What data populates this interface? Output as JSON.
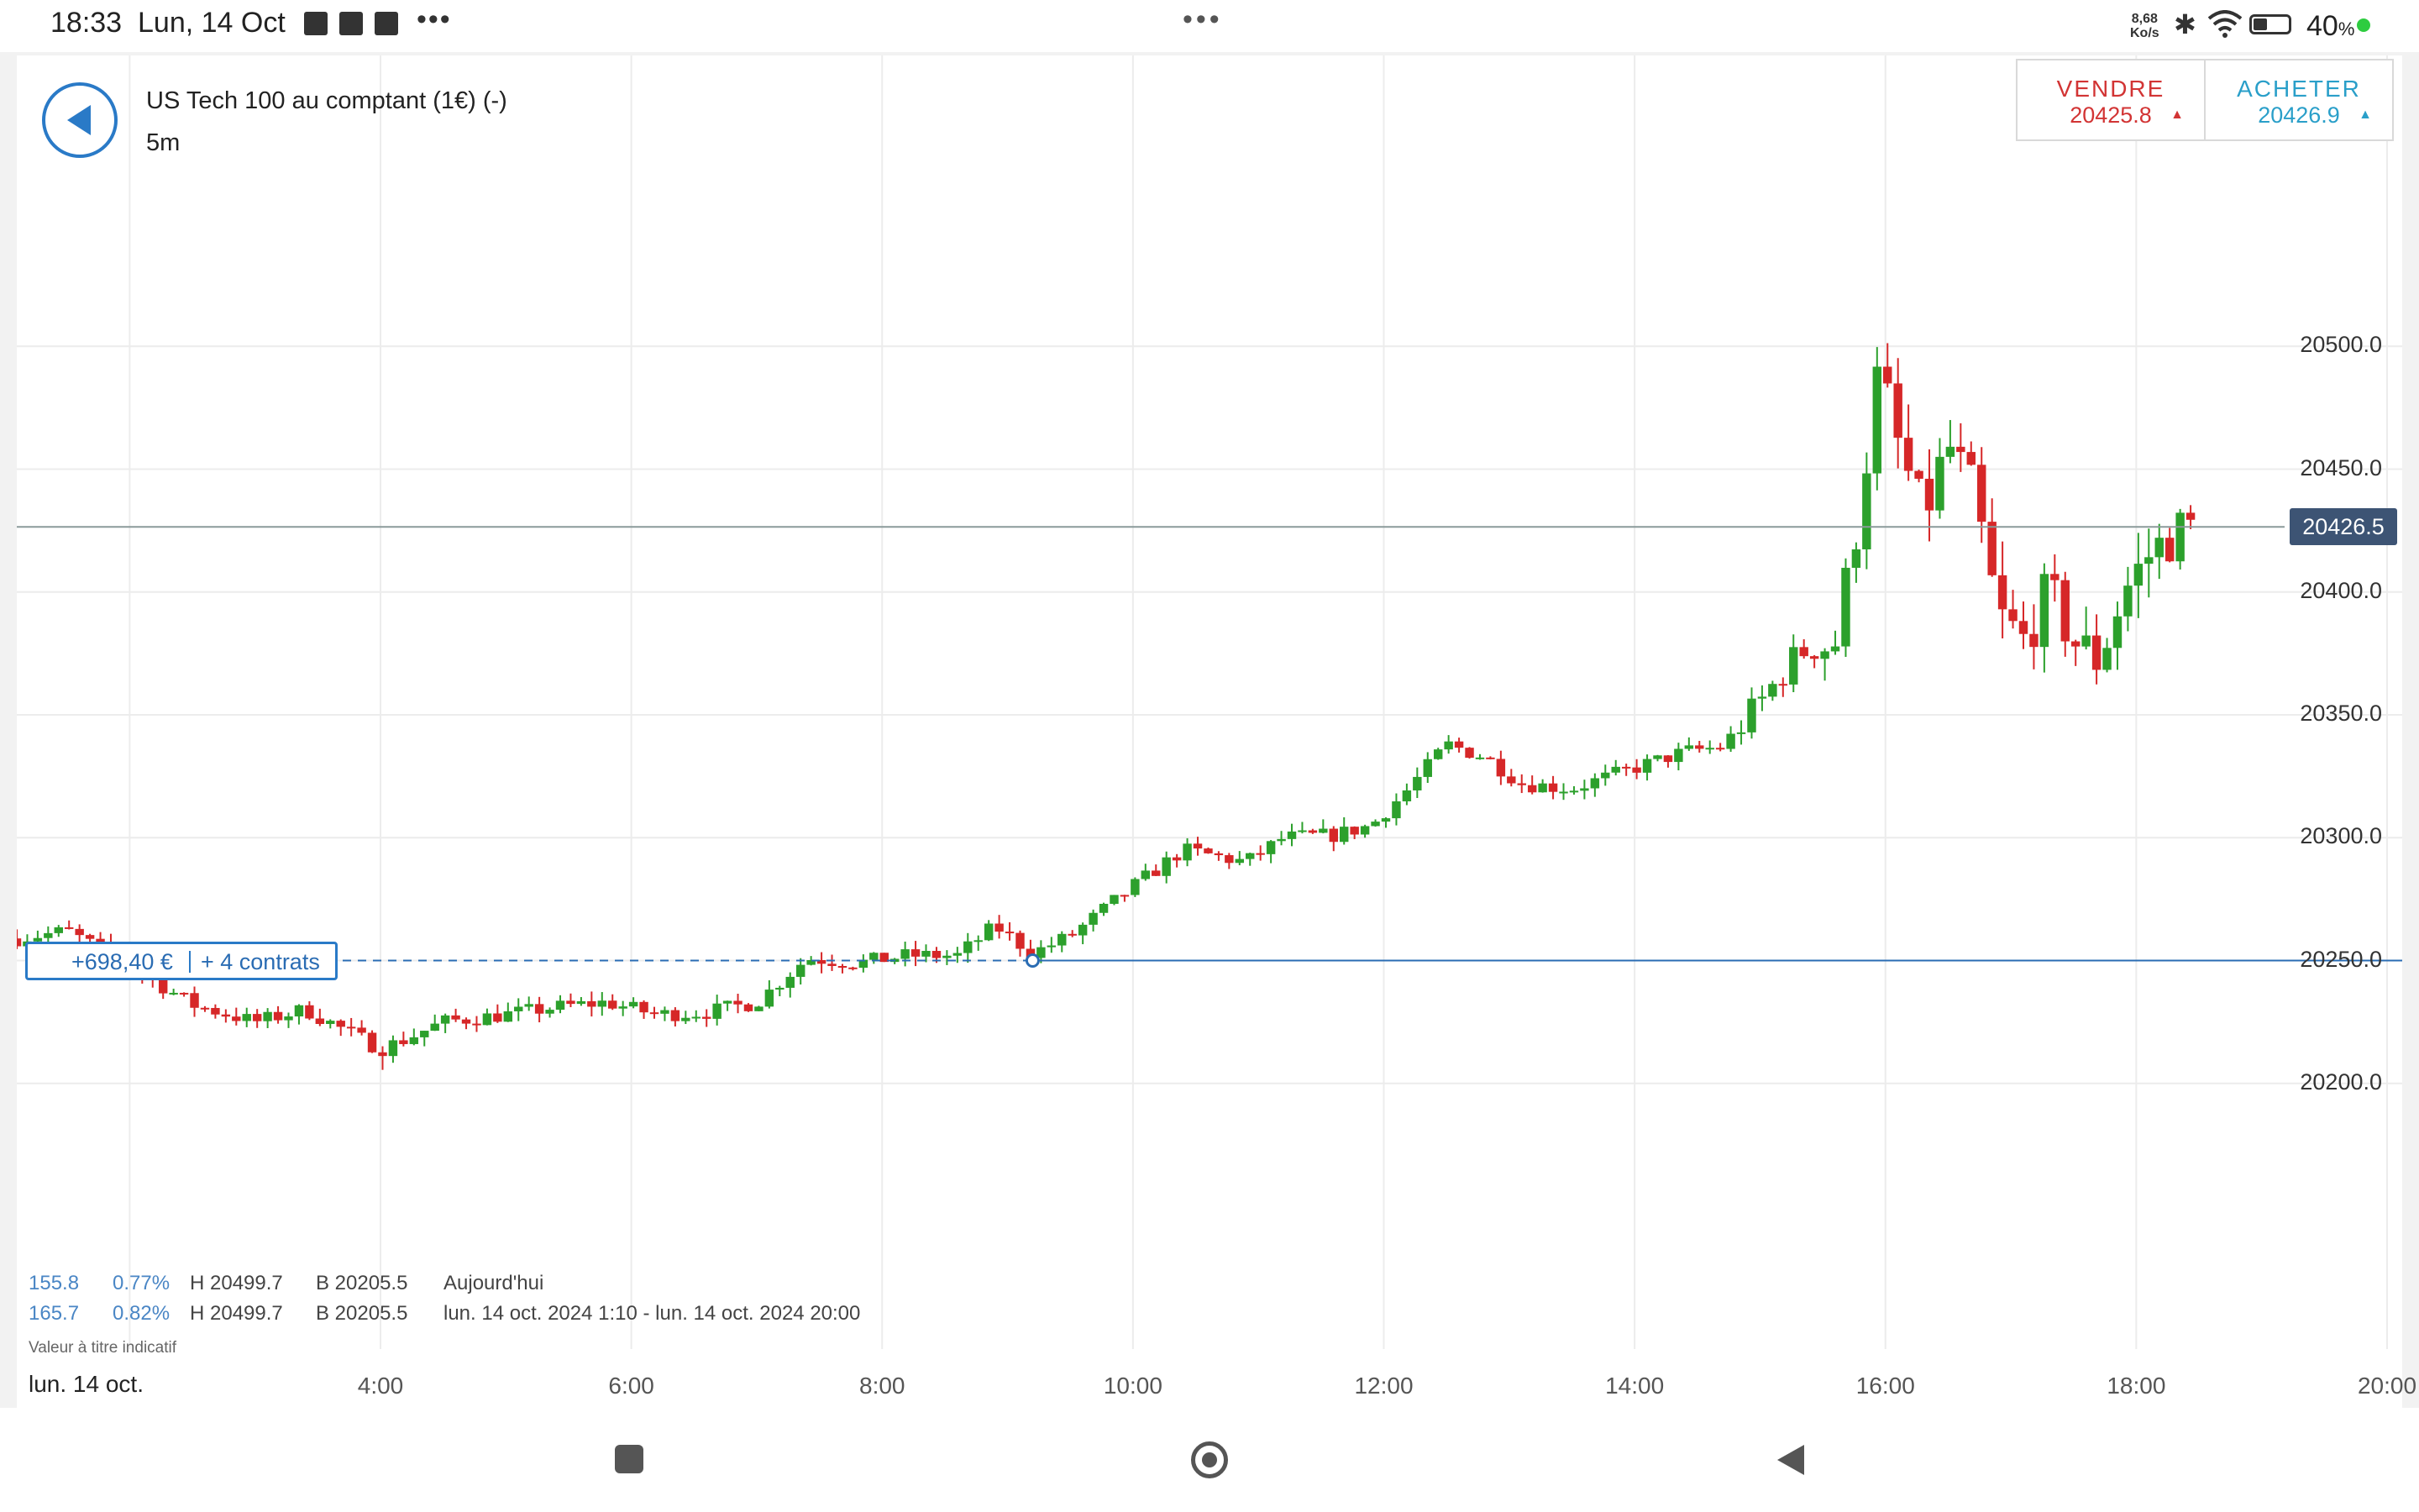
{
  "status_bar": {
    "time": "18:33",
    "date": "Lun, 14 Oct",
    "dots": "•••",
    "left_dots": "•••",
    "speed_value": "8,68",
    "speed_unit": "Ko/s",
    "battery_value": "40",
    "battery_unit": "%",
    "battery_level": 0.4,
    "icons": [
      "trash-icon",
      "notification-icon",
      "notification-icon",
      "bluetooth-icon",
      "wifi-icon",
      "battery-icon"
    ]
  },
  "header": {
    "instrument": "US Tech 100 au comptant (1€) (-)",
    "timeframe": "5m"
  },
  "trade": {
    "sell_label": "VENDRE",
    "sell_price": "20425.8",
    "buy_label": "ACHETER",
    "buy_price": "20426.9",
    "sell_arrow": "▲",
    "buy_arrow": "▲",
    "sell_color": "#d23434",
    "buy_color": "#2a9fc9"
  },
  "position": {
    "pnl": "+698,40 €",
    "contracts": "+ 4 contrats",
    "entry_price": 20250.0
  },
  "stats": {
    "row1": {
      "change": "155.8",
      "pct": "0.77%",
      "high": "H 20499.7",
      "low": "B 20205.5",
      "period": "Aujourd'hui"
    },
    "row2": {
      "change": "165.7",
      "pct": "0.82%",
      "high": "H 20499.7",
      "low": "B 20205.5",
      "period": "lun. 14 oct. 2024 1:10 - lun. 14 oct. 2024 20:00"
    },
    "disclaimer": "Valeur à titre indicatif"
  },
  "axis": {
    "date_label": "lun. 14 oct.",
    "current_price": "20426.5",
    "y_ticks": [
      "20500.0",
      "20450.0",
      "20400.0",
      "20350.0",
      "20300.0",
      "20250.0",
      "20200.0"
    ],
    "x_ticks": [
      "4:00",
      "6:00",
      "8:00",
      "10:00",
      "12:00",
      "14:00",
      "16:00",
      "18:00",
      "20:00"
    ]
  },
  "chart_data": {
    "type": "candlestick",
    "y_range": [
      20150,
      20550
    ],
    "x_range_hours": [
      1.1,
      20.0
    ],
    "up_color": "#2ca02c",
    "down_color": "#d62728",
    "current_price": 20426.5,
    "high": 20499.7,
    "low": 20205.5,
    "close_path": [
      [
        1.1,
        20259
      ],
      [
        1.5,
        20262
      ],
      [
        2.0,
        20248
      ],
      [
        2.5,
        20232
      ],
      [
        3.0,
        20225
      ],
      [
        3.4,
        20230
      ],
      [
        3.7,
        20222
      ],
      [
        4.0,
        20214
      ],
      [
        4.2,
        20218
      ],
      [
        4.5,
        20225
      ],
      [
        5.0,
        20228
      ],
      [
        5.4,
        20231
      ],
      [
        5.8,
        20233
      ],
      [
        6.2,
        20228
      ],
      [
        6.6,
        20229
      ],
      [
        7.0,
        20233
      ],
      [
        7.4,
        20251
      ],
      [
        7.8,
        20249
      ],
      [
        8.2,
        20252
      ],
      [
        8.6,
        20252
      ],
      [
        8.9,
        20264
      ],
      [
        9.2,
        20253
      ],
      [
        9.5,
        20260
      ],
      [
        10.0,
        20280
      ],
      [
        10.4,
        20295
      ],
      [
        10.9,
        20290
      ],
      [
        11.2,
        20300
      ],
      [
        11.6,
        20301
      ],
      [
        11.9,
        20305
      ],
      [
        12.2,
        20320
      ],
      [
        12.5,
        20338
      ],
      [
        12.8,
        20333
      ],
      [
        13.1,
        20322
      ],
      [
        13.5,
        20320
      ],
      [
        13.8,
        20325
      ],
      [
        14.1,
        20330
      ],
      [
        14.4,
        20335
      ],
      [
        14.7,
        20337
      ],
      [
        15.0,
        20355
      ],
      [
        15.3,
        20375
      ],
      [
        15.6,
        20380
      ],
      [
        15.75,
        20420
      ],
      [
        15.95,
        20490
      ],
      [
        16.1,
        20460
      ],
      [
        16.3,
        20430
      ],
      [
        16.5,
        20460
      ],
      [
        16.7,
        20440
      ],
      [
        16.9,
        20390
      ],
      [
        17.1,
        20380
      ],
      [
        17.3,
        20400
      ],
      [
        17.5,
        20380
      ],
      [
        17.7,
        20372
      ],
      [
        17.9,
        20400
      ],
      [
        18.1,
        20415
      ],
      [
        18.3,
        20424
      ],
      [
        18.5,
        20426.5
      ]
    ]
  },
  "nav": {
    "items": [
      "recent-apps-button",
      "home-button",
      "back-button"
    ]
  }
}
